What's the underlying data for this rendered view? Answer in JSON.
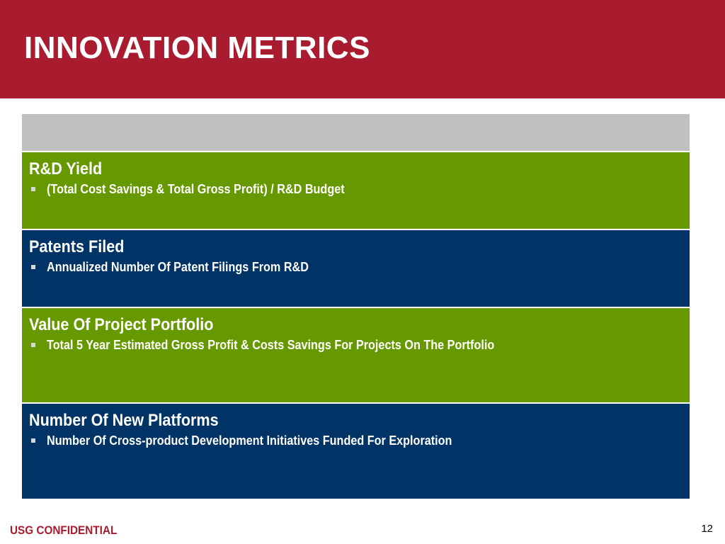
{
  "slide": {
    "title": "INNOVATION METRICS",
    "page_number": "12"
  },
  "footer": {
    "confidential": "USG CONFIDENTIAL"
  },
  "colors": {
    "header_red": "#a91c2f",
    "row_green": "#669900",
    "row_navy": "#003366",
    "table_header_gray": "#c0c0c0"
  },
  "metrics": [
    {
      "title": "R&D Yield",
      "description": "(Total Cost Savings & Total Gross Profit) / R&D Budget",
      "color": "green"
    },
    {
      "title": "Patents Filed",
      "description": "Annualized Number Of Patent Filings From R&D",
      "color": "navy"
    },
    {
      "title": "Value Of Project Portfolio",
      "description": "Total 5 Year Estimated Gross Profit & Costs Savings For Projects On The Portfolio",
      "color": "green"
    },
    {
      "title": "Number Of New Platforms",
      "description": "Number Of Cross-product Development Initiatives Funded For Exploration",
      "color": "navy"
    }
  ]
}
